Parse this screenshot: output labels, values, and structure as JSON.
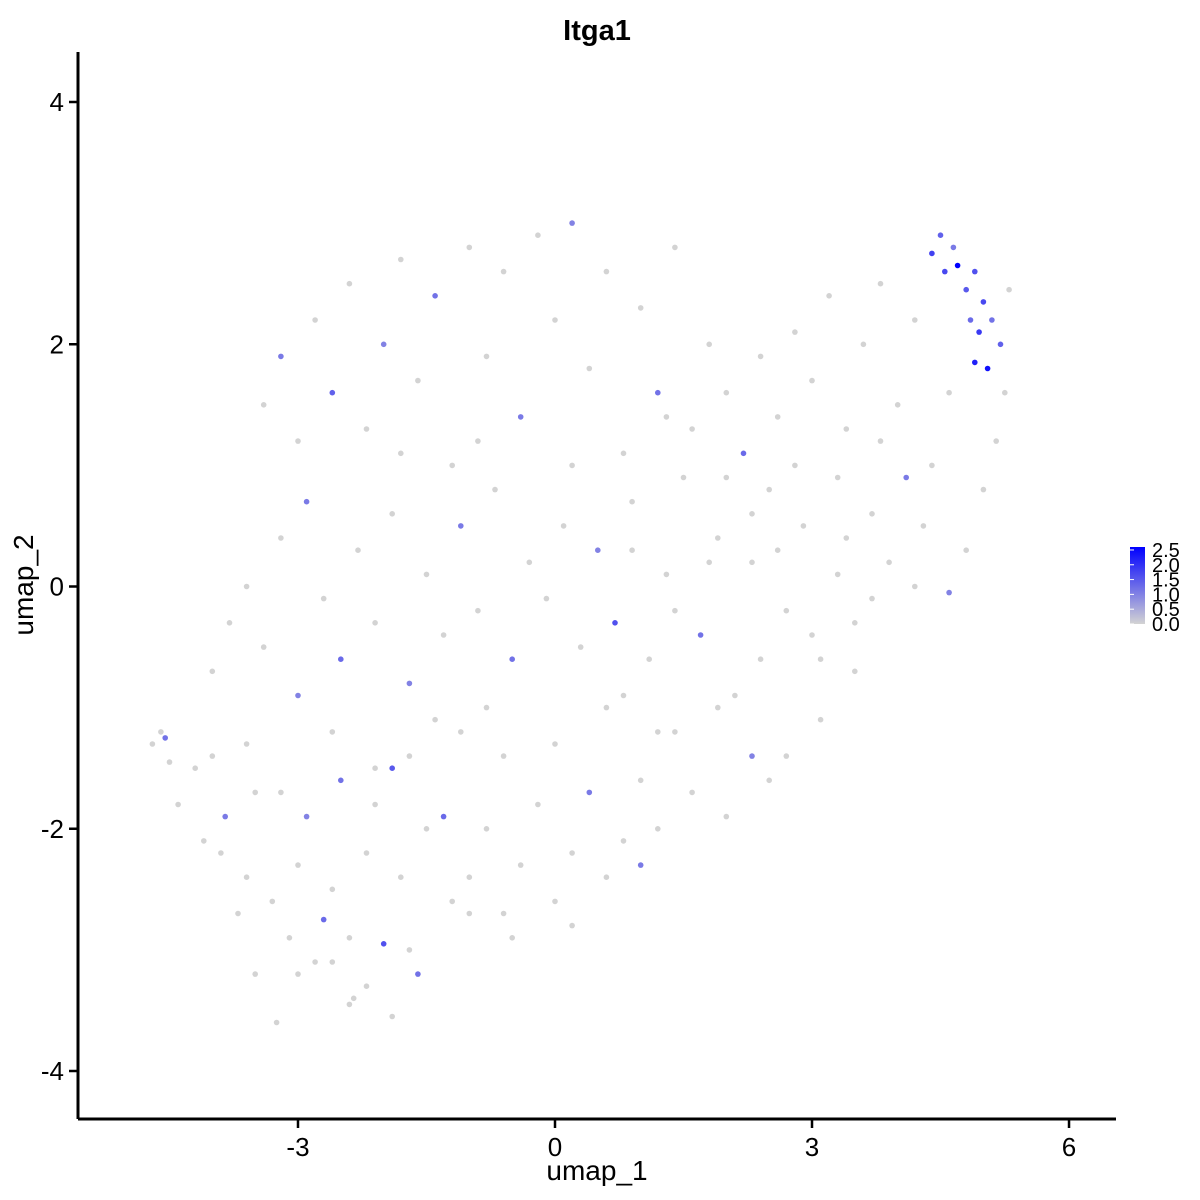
{
  "chart_data": {
    "type": "scatter",
    "title": "Itga1",
    "xlabel": "umap_1",
    "ylabel": "umap_2",
    "xlim": [
      -5.5,
      6.5
    ],
    "ylim": [
      -4.4,
      4.4
    ],
    "x_ticks": [
      -3,
      0,
      3,
      6
    ],
    "x_tick_labels": [
      "-3",
      "0",
      "3",
      "6"
    ],
    "y_ticks": [
      -4,
      -2,
      0,
      2,
      4
    ],
    "y_tick_labels": [
      "-4",
      "-2",
      "0",
      "2",
      "4"
    ],
    "grid": false,
    "color_scale": {
      "low_color": "#d3d3d3",
      "high_color": "#0000ff",
      "min": 0.0,
      "max": 2.6,
      "breaks": [
        0.0,
        0.5,
        1.0,
        1.5,
        2.0,
        2.5
      ],
      "break_labels": [
        "0.0",
        "0.5",
        "1.0",
        "1.5",
        "2.0",
        "2.5"
      ],
      "legend_position": "right"
    },
    "points": [
      [
        -4.7,
        -1.3,
        0
      ],
      [
        -4.6,
        -1.2,
        0
      ],
      [
        -4.55,
        -1.25,
        1.2
      ],
      [
        -4.5,
        -1.45,
        0
      ],
      [
        -4.4,
        -1.8,
        0
      ],
      [
        -4.2,
        -1.5,
        0
      ],
      [
        -4.1,
        -2.1,
        0
      ],
      [
        -4.0,
        -1.4,
        0
      ],
      [
        -3.9,
        -2.2,
        0
      ],
      [
        -3.85,
        -1.9,
        1.1
      ],
      [
        -3.7,
        -2.7,
        0
      ],
      [
        -3.6,
        -2.4,
        0
      ],
      [
        -3.5,
        -1.7,
        0
      ],
      [
        -3.5,
        -3.2,
        0
      ],
      [
        -3.3,
        -2.6,
        0
      ],
      [
        -3.25,
        -3.6,
        0
      ],
      [
        -3.1,
        -2.9,
        0
      ],
      [
        -3.0,
        -2.3,
        0
      ],
      [
        -2.9,
        -1.9,
        1.0
      ],
      [
        -2.8,
        -3.1,
        0
      ],
      [
        -2.7,
        -2.75,
        1.3
      ],
      [
        -2.6,
        -2.5,
        0
      ],
      [
        -2.5,
        -1.6,
        1.2
      ],
      [
        -2.4,
        -2.9,
        0
      ],
      [
        -2.35,
        -3.4,
        0
      ],
      [
        -2.2,
        -2.2,
        0
      ],
      [
        -2.1,
        -1.8,
        0
      ],
      [
        -2.0,
        -2.95,
        1.6
      ],
      [
        -1.9,
        -1.5,
        1.5
      ],
      [
        -1.8,
        -2.4,
        0
      ],
      [
        -1.7,
        -1.4,
        0
      ],
      [
        -1.6,
        -3.2,
        1.2
      ],
      [
        -1.5,
        -2.0,
        0
      ],
      [
        -1.3,
        -1.9,
        1.3
      ],
      [
        -1.2,
        -2.6,
        0
      ],
      [
        -1.1,
        -1.2,
        0
      ],
      [
        -1.0,
        -2.4,
        0
      ],
      [
        -0.8,
        -2.0,
        0
      ],
      [
        -0.6,
        -2.7,
        0
      ],
      [
        -0.4,
        -2.3,
        0
      ],
      [
        -0.2,
        -1.8,
        0
      ],
      [
        0.0,
        -2.6,
        0
      ],
      [
        0.2,
        -2.2,
        0
      ],
      [
        0.4,
        -1.7,
        1.1
      ],
      [
        0.6,
        -2.4,
        0
      ],
      [
        0.8,
        -2.1,
        0
      ],
      [
        1.0,
        -1.6,
        0
      ],
      [
        1.2,
        -2.0,
        0
      ],
      [
        1.4,
        -1.2,
        0
      ],
      [
        1.6,
        -1.7,
        0
      ],
      [
        -4.0,
        -0.7,
        0
      ],
      [
        -3.8,
        -0.3,
        0
      ],
      [
        -3.6,
        0.0,
        0
      ],
      [
        -3.4,
        -0.5,
        0
      ],
      [
        -3.2,
        0.4,
        0
      ],
      [
        -3.0,
        -0.9,
        1.0
      ],
      [
        -2.9,
        0.7,
        1.1
      ],
      [
        -2.7,
        -0.1,
        0
      ],
      [
        -2.5,
        -0.6,
        1.3
      ],
      [
        -2.3,
        0.3,
        0
      ],
      [
        -2.1,
        -0.3,
        0
      ],
      [
        -1.9,
        0.6,
        0
      ],
      [
        -1.7,
        -0.8,
        1.0
      ],
      [
        -1.5,
        0.1,
        0
      ],
      [
        -1.3,
        -0.4,
        0
      ],
      [
        -1.1,
        0.5,
        1.1
      ],
      [
        -0.9,
        -0.2,
        0
      ],
      [
        -0.7,
        0.8,
        0
      ],
      [
        -0.5,
        -0.6,
        1.2
      ],
      [
        -0.3,
        0.2,
        0
      ],
      [
        -0.1,
        -0.1,
        0
      ],
      [
        0.1,
        0.5,
        0
      ],
      [
        0.3,
        -0.5,
        0
      ],
      [
        0.5,
        0.3,
        1.0
      ],
      [
        0.7,
        -0.3,
        1.6
      ],
      [
        0.9,
        0.7,
        0
      ],
      [
        1.1,
        -0.6,
        0
      ],
      [
        1.3,
        0.1,
        0
      ],
      [
        1.5,
        0.9,
        0
      ],
      [
        1.7,
        -0.4,
        1.2
      ],
      [
        1.9,
        0.4,
        0
      ],
      [
        2.1,
        -0.9,
        0
      ],
      [
        2.3,
        0.2,
        0
      ],
      [
        2.5,
        0.8,
        0
      ],
      [
        2.7,
        -0.2,
        0
      ],
      [
        2.9,
        0.5,
        0
      ],
      [
        3.1,
        -0.6,
        0
      ],
      [
        3.3,
        0.1,
        0
      ],
      [
        3.5,
        -0.3,
        0
      ],
      [
        3.7,
        0.6,
        0
      ],
      [
        -3.4,
        1.5,
        0
      ],
      [
        -3.2,
        1.9,
        1.1
      ],
      [
        -3.0,
        1.2,
        0
      ],
      [
        -2.8,
        2.2,
        0
      ],
      [
        -2.6,
        1.6,
        1.4
      ],
      [
        -2.4,
        2.5,
        0
      ],
      [
        -2.2,
        1.3,
        0
      ],
      [
        -2.0,
        2.0,
        1.0
      ],
      [
        -1.8,
        2.7,
        0
      ],
      [
        -1.6,
        1.7,
        0
      ],
      [
        -1.4,
        2.4,
        1.2
      ],
      [
        -1.2,
        1.0,
        0
      ],
      [
        -1.0,
        2.8,
        0
      ],
      [
        -0.8,
        1.9,
        0
      ],
      [
        -0.6,
        2.6,
        0
      ],
      [
        -0.4,
        1.4,
        1.1
      ],
      [
        -0.2,
        2.9,
        0
      ],
      [
        0.0,
        2.2,
        0
      ],
      [
        0.2,
        3.0,
        1.0
      ],
      [
        0.4,
        1.8,
        0
      ],
      [
        0.6,
        2.6,
        0
      ],
      [
        0.8,
        1.1,
        0
      ],
      [
        1.0,
        2.3,
        0
      ],
      [
        1.2,
        1.6,
        1.2
      ],
      [
        1.4,
        2.8,
        0
      ],
      [
        1.6,
        1.3,
        0
      ],
      [
        1.8,
        2.0,
        0
      ],
      [
        2.0,
        1.6,
        0
      ],
      [
        2.2,
        1.1,
        1.3
      ],
      [
        2.4,
        1.9,
        0
      ],
      [
        2.6,
        1.4,
        0
      ],
      [
        2.8,
        2.1,
        0
      ],
      [
        3.0,
        1.7,
        0
      ],
      [
        3.2,
        2.4,
        0
      ],
      [
        3.4,
        1.3,
        0
      ],
      [
        3.6,
        2.0,
        0
      ],
      [
        3.8,
        2.5,
        0
      ],
      [
        4.0,
        1.5,
        0
      ],
      [
        4.2,
        2.2,
        0
      ],
      [
        4.4,
        1.0,
        0
      ],
      [
        4.4,
        2.75,
        1.8
      ],
      [
        4.5,
        2.9,
        1.4
      ],
      [
        4.55,
        2.6,
        1.7
      ],
      [
        4.65,
        2.8,
        1.1
      ],
      [
        4.7,
        2.65,
        2.6
      ],
      [
        4.8,
        2.45,
        1.5
      ],
      [
        4.85,
        2.2,
        1.3
      ],
      [
        4.9,
        2.6,
        1.6
      ],
      [
        4.95,
        2.1,
        1.9
      ],
      [
        5.0,
        2.35,
        1.7
      ],
      [
        4.9,
        1.85,
        2.2
      ],
      [
        5.05,
        1.8,
        2.4
      ],
      [
        5.1,
        2.2,
        1.2
      ],
      [
        5.2,
        2.0,
        1.4
      ],
      [
        5.25,
        1.6,
        0
      ],
      [
        5.3,
        2.45,
        0
      ],
      [
        5.15,
        1.2,
        0
      ],
      [
        5.0,
        0.8,
        0
      ],
      [
        4.8,
        0.3,
        0
      ],
      [
        4.6,
        -0.05,
        1.0
      ],
      [
        4.3,
        0.5,
        0
      ],
      [
        4.1,
        0.9,
        1.1
      ],
      [
        3.9,
        0.2,
        0
      ],
      [
        3.7,
        -0.1,
        0
      ],
      [
        3.5,
        -0.7,
        0
      ],
      [
        3.1,
        -1.1,
        0
      ],
      [
        2.7,
        -1.4,
        0
      ],
      [
        2.5,
        -1.6,
        0
      ],
      [
        2.3,
        -1.4,
        1.0
      ],
      [
        2.0,
        -1.9,
        0
      ],
      [
        1.0,
        -2.3,
        1.1
      ],
      [
        0.2,
        -2.8,
        0
      ],
      [
        -0.5,
        -2.9,
        0
      ],
      [
        -1.0,
        -2.7,
        0
      ],
      [
        -1.7,
        -3.0,
        0
      ],
      [
        -2.2,
        -3.3,
        0
      ],
      [
        -2.6,
        -3.1,
        0
      ],
      [
        -3.0,
        -3.2,
        0
      ],
      [
        -2.4,
        -3.45,
        0
      ],
      [
        -1.9,
        -3.55,
        0
      ],
      [
        -0.8,
        -1.0,
        0
      ],
      [
        0.0,
        -1.3,
        0
      ],
      [
        0.8,
        -0.9,
        0
      ],
      [
        1.4,
        -0.2,
        0
      ],
      [
        1.8,
        0.2,
        0
      ],
      [
        2.3,
        0.6,
        0
      ],
      [
        2.8,
        1.0,
        0
      ],
      [
        3.3,
        0.9,
        0
      ],
      [
        3.8,
        1.2,
        0
      ],
      [
        4.6,
        1.6,
        0
      ],
      [
        -1.8,
        1.1,
        0
      ],
      [
        -0.9,
        1.2,
        0
      ],
      [
        0.2,
        1.0,
        0
      ],
      [
        0.9,
        0.3,
        0
      ],
      [
        1.3,
        1.4,
        0
      ],
      [
        2.0,
        0.9,
        0
      ],
      [
        2.6,
        0.3,
        0
      ],
      [
        3.4,
        0.4,
        0
      ],
      [
        4.2,
        0.0,
        0
      ],
      [
        3.0,
        -0.4,
        0
      ],
      [
        -3.6,
        -1.3,
        0
      ],
      [
        -3.2,
        -1.7,
        0
      ],
      [
        -2.6,
        -1.2,
        0
      ],
      [
        -2.1,
        -1.5,
        0
      ],
      [
        -1.4,
        -1.1,
        0
      ],
      [
        -0.6,
        -1.4,
        0
      ],
      [
        0.6,
        -1.0,
        0
      ],
      [
        1.2,
        -1.2,
        0
      ],
      [
        1.9,
        -1.0,
        0
      ],
      [
        2.4,
        -0.6,
        0
      ]
    ]
  }
}
